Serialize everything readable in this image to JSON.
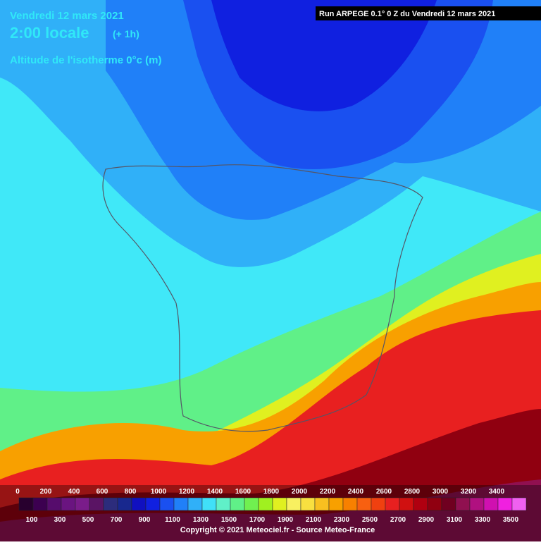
{
  "header": {
    "date": "Vendredi 12 mars 2021",
    "time": "2:00 locale",
    "offset": "(+ 1h)",
    "field": "Altitude de l'isotherme 0°c (m)"
  },
  "run": "Run ARPEGE 0.1° 0 Z du Vendredi 12 mars 2021",
  "legend": {
    "levels": [
      0,
      100,
      200,
      300,
      400,
      500,
      600,
      700,
      800,
      900,
      1000,
      1100,
      1200,
      1300,
      1400,
      1500,
      1600,
      1700,
      1800,
      1900,
      2000,
      2100,
      2200,
      2300,
      2400,
      2500,
      2600,
      2700,
      2800,
      2900,
      3000,
      3100,
      3200,
      3300,
      3400,
      3500
    ],
    "colors": [
      "#28002e",
      "#3c0050",
      "#560c6c",
      "#6a1480",
      "#7a1c8a",
      "#5a1464",
      "#2c2c7c",
      "#18288e",
      "#1010c0",
      "#1020e0",
      "#1a50f0",
      "#2080f8",
      "#30b0f8",
      "#40e0f8",
      "#60f0c8",
      "#60f088",
      "#70f050",
      "#a0f020",
      "#e0f020",
      "#f8f060",
      "#f8e040",
      "#f8c020",
      "#f8a000",
      "#f88000",
      "#f86010",
      "#f04010",
      "#e82020",
      "#d01010",
      "#b00010",
      "#900010",
      "#700020",
      "#901050",
      "#b01080",
      "#d010b0",
      "#f020e0",
      "#f060f0"
    ]
  },
  "copyright": "Copyright © 2021 Meteociel.fr - Source Meteo-France"
}
